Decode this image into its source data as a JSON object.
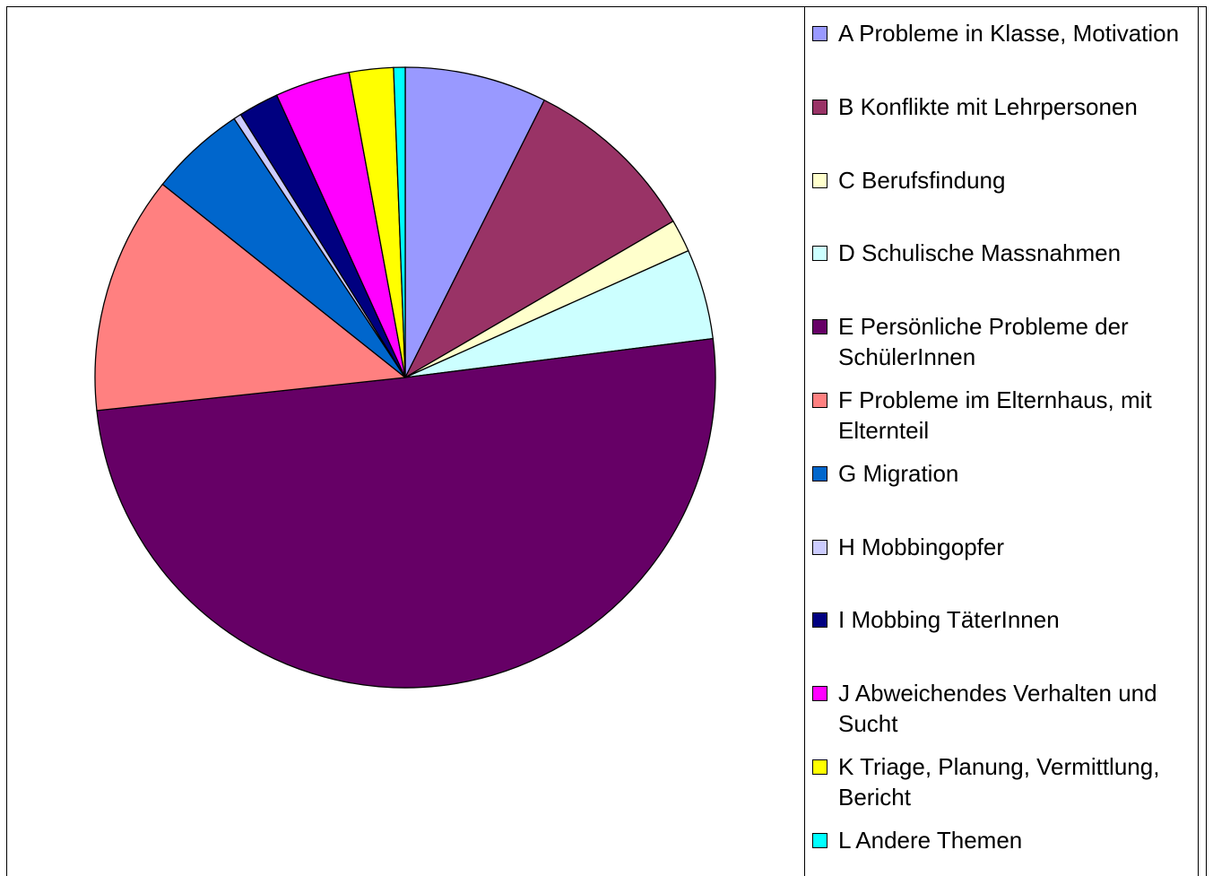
{
  "chart_data": {
    "type": "pie",
    "categories": [
      "A Probleme in Klasse, Motivation",
      "B Konflikte mit Lehrpersonen",
      "C Berufsfindung",
      "D Schulische Massnahmen",
      "E Persönliche Probleme der SchülerInnen",
      "F Probleme im Elternhaus, mit Elternteil",
      "G Migration",
      "H Mobbingopfer",
      "I Mobbing TäterInnen",
      "J Abweichendes Verhalten und Sucht",
      "K Triage, Planung, Vermittlung, Bericht",
      "L Andere Themen"
    ],
    "values": [
      7.4,
      9.2,
      1.7,
      4.7,
      50.3,
      12.4,
      5.0,
      0.4,
      2.1,
      3.9,
      2.3,
      0.6
    ],
    "colors": [
      "#9999ff",
      "#993366",
      "#ffffcc",
      "#ccffff",
      "#660066",
      "#ff8080",
      "#0066cc",
      "#ccccff",
      "#000080",
      "#ff00ff",
      "#ffff00",
      "#00ffff"
    ],
    "legend": "right"
  }
}
